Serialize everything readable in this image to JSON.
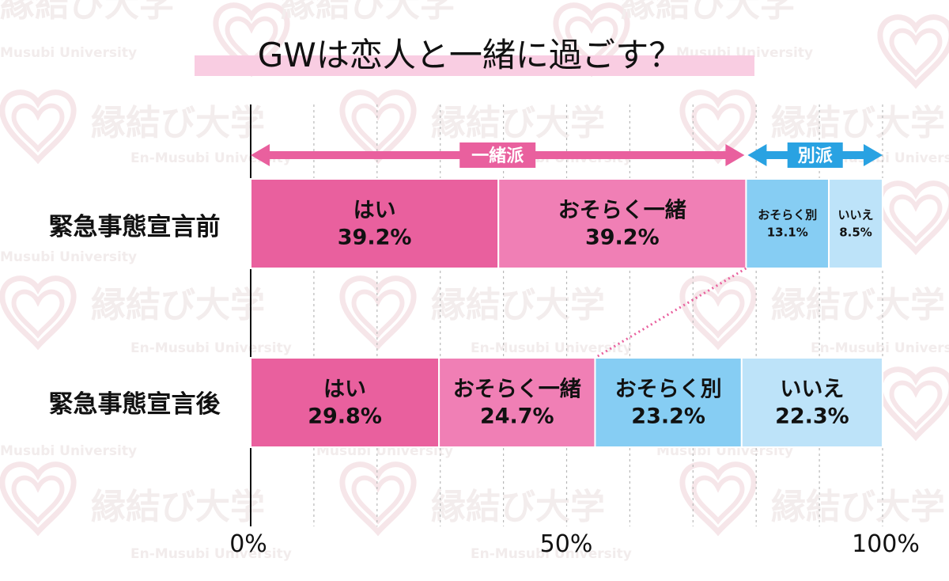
{
  "watermark": {
    "text": "縁結び大学",
    "sub_a": "Musubi University",
    "sub_b": "En-Musubi University"
  },
  "chart_data": {
    "type": "bar",
    "orientation": "horizontal",
    "stacked": true,
    "title": "GWは恋人と一緒に過ごす？",
    "xlim": [
      0,
      100
    ],
    "x_ticks": [
      "0%",
      "50%",
      "100%"
    ],
    "grid": "dashed vertical gridlines every 10%",
    "categories": [
      "緊急事態宣言前",
      "緊急事態宣言後"
    ],
    "series": [
      {
        "name": "はい",
        "values": [
          39.2,
          29.8
        ],
        "labels": [
          "39.2%",
          "29.8%"
        ],
        "color": "#e9609e"
      },
      {
        "name": "おそらく一緒",
        "values": [
          39.2,
          24.7
        ],
        "labels": [
          "39.2%",
          "24.7%"
        ],
        "color": "#f07fb5"
      },
      {
        "name": "おそらく別",
        "values": [
          13.1,
          23.2
        ],
        "labels": [
          "13.1%",
          "23.2%"
        ],
        "color": "#86cdf3"
      },
      {
        "name": "いいえ",
        "values": [
          8.5,
          22.3
        ],
        "labels": [
          "8.5%",
          "22.3%"
        ],
        "color": "#bde3f9"
      }
    ],
    "groups": [
      {
        "label": "一緒派",
        "color": "#e9609e"
      },
      {
        "label": "別派",
        "color": "#29a2e2"
      }
    ]
  }
}
